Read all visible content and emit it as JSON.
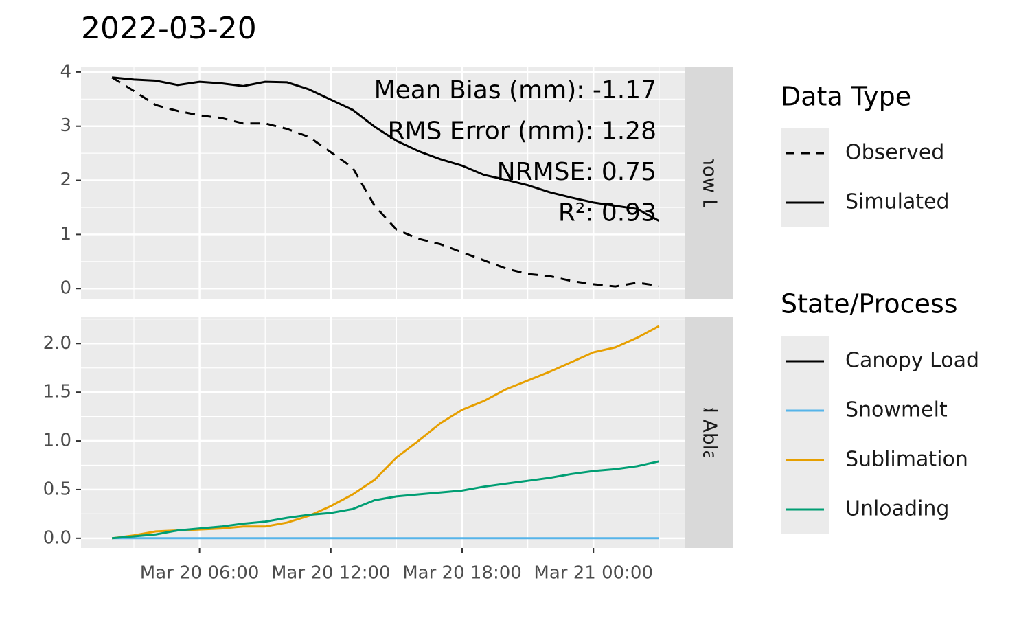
{
  "chart_data": {
    "type": "line",
    "title": "2022-03-20",
    "x": [
      "Mar 20 02:00",
      "Mar 20 03:00",
      "Mar 20 04:00",
      "Mar 20 05:00",
      "Mar 20 06:00",
      "Mar 20 07:00",
      "Mar 20 08:00",
      "Mar 20 09:00",
      "Mar 20 10:00",
      "Mar 20 11:00",
      "Mar 20 12:00",
      "Mar 20 13:00",
      "Mar 20 14:00",
      "Mar 20 15:00",
      "Mar 20 16:00",
      "Mar 20 17:00",
      "Mar 20 18:00",
      "Mar 20 19:00",
      "Mar 20 20:00",
      "Mar 20 21:00",
      "Mar 20 22:00",
      "Mar 20 23:00",
      "Mar 21 00:00",
      "Mar 21 01:00",
      "Mar 21 02:00",
      "Mar 21 03:00"
    ],
    "xlim": [
      "Mar 20 00:35",
      "Mar 21 04:10"
    ],
    "xticks": [
      "Mar 20 06:00",
      "Mar 20 12:00",
      "Mar 20 18:00",
      "Mar 21 00:00"
    ],
    "grid": true,
    "panels": [
      {
        "strip": "Canopy Snow Load (mm)",
        "ylim": [
          -0.2,
          4.1
        ],
        "yticks": [
          0,
          1,
          2,
          3,
          4
        ],
        "annotations": [
          "Mean Bias (mm): -1.17",
          "RMS Error (mm): 1.28",
          "NRMSE: 0.75",
          "R²: 0.93"
        ],
        "series": [
          {
            "name": "Observed",
            "linetype": "dashed",
            "color": "#000000",
            "values": [
              3.9,
              3.65,
              3.39,
              3.28,
              3.2,
              3.15,
              3.05,
              3.05,
              2.95,
              2.8,
              2.52,
              2.23,
              1.53,
              1.09,
              0.92,
              0.82,
              0.67,
              0.52,
              0.37,
              0.27,
              0.23,
              0.14,
              0.08,
              0.04,
              0.11,
              0.05
            ]
          },
          {
            "name": "Simulated",
            "linetype": "solid",
            "color": "#000000",
            "values": [
              3.9,
              3.86,
              3.84,
              3.76,
              3.82,
              3.79,
              3.74,
              3.82,
              3.81,
              3.68,
              3.49,
              3.3,
              2.99,
              2.73,
              2.54,
              2.39,
              2.27,
              2.1,
              2.01,
              1.91,
              1.78,
              1.68,
              1.59,
              1.53,
              1.47,
              1.25
            ]
          }
        ]
      },
      {
        "strip": "Cumulated Ablation (mm)",
        "ylim": [
          -0.1,
          2.27
        ],
        "yticks": [
          {
            "value": 0,
            "label": "0.0"
          },
          0.5,
          {
            "value": 1,
            "label": "1.0"
          },
          1.5,
          {
            "value": 2,
            "label": "2.0"
          }
        ],
        "series": [
          {
            "name": "Snowmelt",
            "linetype": "solid",
            "color": "#56B4E9",
            "values": [
              0,
              0,
              0,
              0,
              0,
              0,
              0,
              0,
              0,
              0,
              0,
              0,
              0,
              0,
              0,
              0,
              0,
              0,
              0,
              0,
              0,
              0,
              0,
              0,
              0,
              0
            ]
          },
          {
            "name": "Sublimation",
            "linetype": "solid",
            "color": "#E69F00",
            "values": [
              0,
              0.03,
              0.07,
              0.08,
              0.09,
              0.1,
              0.12,
              0.12,
              0.16,
              0.23,
              0.33,
              0.45,
              0.6,
              0.83,
              1.0,
              1.18,
              1.32,
              1.41,
              1.53,
              1.62,
              1.71,
              1.81,
              1.91,
              1.96,
              2.06,
              2.18
            ]
          },
          {
            "name": "Unloading",
            "linetype": "solid",
            "color": "#009E73",
            "values": [
              0,
              0.02,
              0.04,
              0.08,
              0.1,
              0.12,
              0.15,
              0.17,
              0.21,
              0.24,
              0.26,
              0.3,
              0.39,
              0.43,
              0.45,
              0.47,
              0.49,
              0.53,
              0.56,
              0.59,
              0.62,
              0.66,
              0.69,
              0.71,
              0.74,
              0.79
            ]
          }
        ]
      }
    ],
    "legends": [
      {
        "title": "Data Type",
        "entries": [
          {
            "name": "Observed",
            "linetype": "dashed",
            "color": "#000000"
          },
          {
            "name": "Simulated",
            "linetype": "solid",
            "color": "#000000"
          }
        ]
      },
      {
        "title": "State/Process",
        "entries": [
          {
            "name": "Canopy Load",
            "linetype": "solid",
            "color": "#000000"
          },
          {
            "name": "Snowmelt",
            "linetype": "solid",
            "color": "#56B4E9"
          },
          {
            "name": "Sublimation",
            "linetype": "solid",
            "color": "#E69F00"
          },
          {
            "name": "Unloading",
            "linetype": "solid",
            "color": "#009E73"
          }
        ]
      }
    ]
  }
}
